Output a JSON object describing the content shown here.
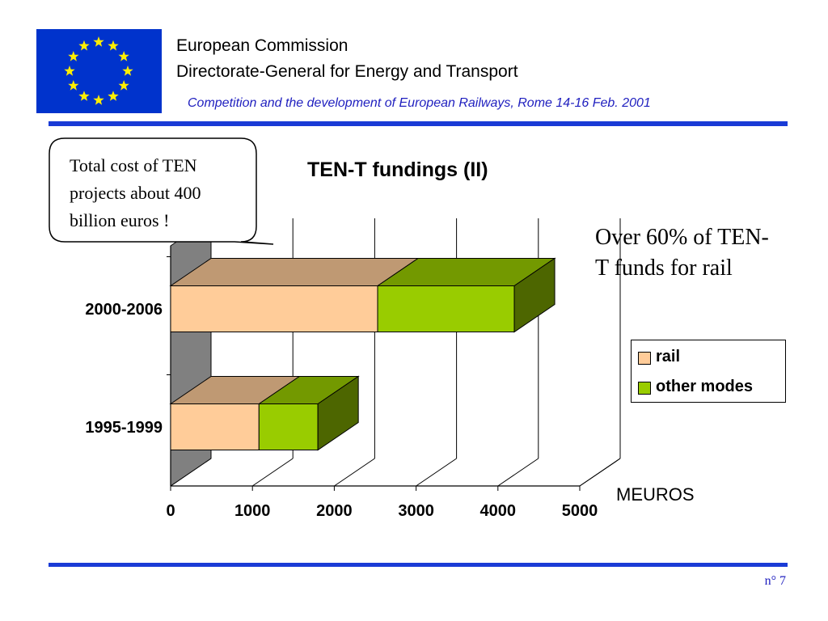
{
  "header": {
    "org_line1": "European Commission",
    "org_line2": "Directorate-General for Energy and Transport",
    "subtitle": "Competition and the development of European Railways, Rome 14-16 Feb. 2001"
  },
  "flag": {
    "icon": "eu-flag-icon",
    "background": "#0033cc",
    "star_color": "#ffee00"
  },
  "callout": {
    "text": "Total cost of TEN projects about 400 billion euros !"
  },
  "note": {
    "text": "Over 60% of TEN-T funds for rail"
  },
  "footer": {
    "page": "n° 7"
  },
  "colors": {
    "accent_rule": "#1a3bd6",
    "rail": "#ffcc99",
    "other_modes": "#99cc00"
  },
  "chart_data": {
    "type": "bar",
    "orientation": "horizontal",
    "stacked": true,
    "three_d": true,
    "title": "TEN-T fundings (II)",
    "categories": [
      "1995-1999",
      "2000-2006"
    ],
    "series": [
      {
        "name": "rail",
        "values": [
          1080,
          2530
        ]
      },
      {
        "name": "other modes",
        "values": [
          720,
          1670
        ]
      }
    ],
    "xlabel": "MEUROS",
    "xlim": [
      0,
      5000
    ],
    "xticks": [
      "0",
      "1000",
      "2000",
      "3000",
      "4000",
      "5000"
    ],
    "grid": true,
    "legend_position": "right"
  }
}
